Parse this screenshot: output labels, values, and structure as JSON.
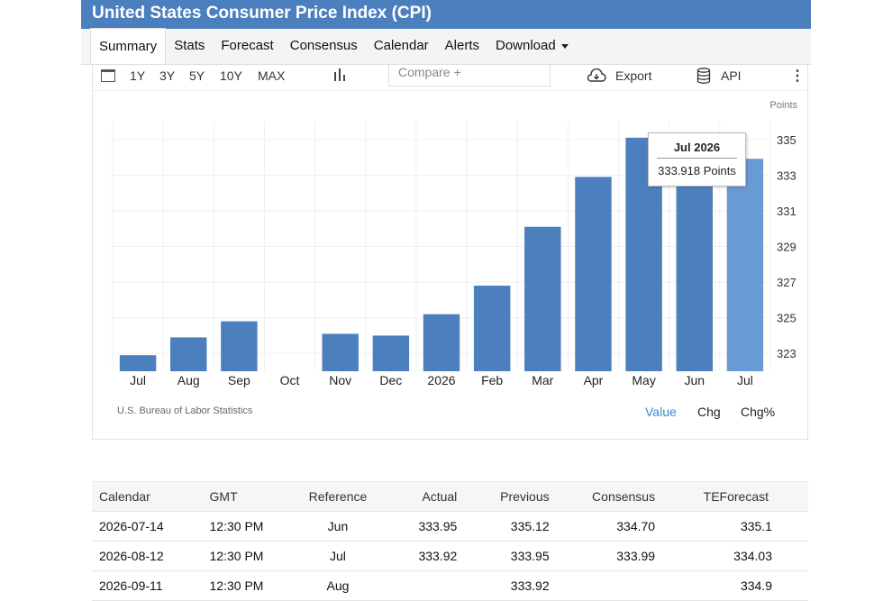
{
  "title": "United States Consumer Price Index (CPI)",
  "tabs": [
    "Summary",
    "Stats",
    "Forecast",
    "Consensus",
    "Calendar",
    "Alerts",
    "Download"
  ],
  "toolbar": {
    "ranges": [
      "1Y",
      "3Y",
      "5Y",
      "10Y",
      "MAX"
    ],
    "compare_placeholder": "Compare +",
    "export_label": "Export",
    "api_label": "API"
  },
  "chart_data": {
    "type": "bar",
    "unit_label": "Points",
    "categories": [
      "Jul",
      "Aug",
      "Sep",
      "Oct",
      "Nov",
      "Dec",
      "2026",
      "Feb",
      "Mar",
      "Apr",
      "May",
      "Jun",
      "Jul"
    ],
    "values": [
      322.9,
      323.9,
      324.8,
      null,
      324.1,
      324.0,
      325.2,
      326.8,
      330.1,
      332.9,
      335.1,
      333.95,
      333.918
    ],
    "highlight_index": 12,
    "y_ticks": [
      323,
      325,
      327,
      329,
      331,
      333,
      335
    ],
    "ylim": [
      322.0,
      336.0
    ],
    "colors": {
      "bar": "#4c7fbd",
      "highlight": "#6a9ad6"
    }
  },
  "tooltip": {
    "date": "Jul 2026",
    "value": "333.918 Points"
  },
  "source": "U.S. Bureau of Labor Statistics",
  "value_options": [
    "Value",
    "Chg",
    "Chg%"
  ],
  "table": {
    "headers": [
      "Calendar",
      "GMT",
      "Reference",
      "Actual",
      "Previous",
      "Consensus",
      "TEForecast"
    ],
    "rows": [
      [
        "2026-07-14",
        "12:30 PM",
        "Jun",
        "333.95",
        "335.12",
        "334.70",
        "335.1"
      ],
      [
        "2026-08-12",
        "12:30 PM",
        "Jul",
        "333.92",
        "333.95",
        "333.99",
        "334.03"
      ],
      [
        "2026-09-11",
        "12:30 PM",
        "Aug",
        "",
        "333.92",
        "",
        "334.9"
      ]
    ]
  }
}
